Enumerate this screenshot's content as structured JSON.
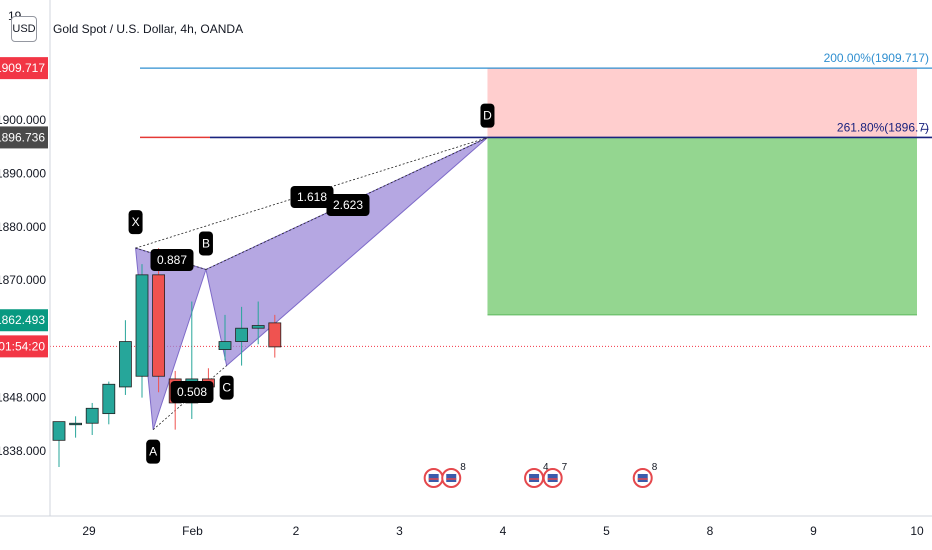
{
  "header": {
    "currency_label": "USD",
    "title": "Gold Spot / U.S. Dollar, 4h, OANDA",
    "top_tick_partial": "19"
  },
  "price_badges": [
    {
      "label": "1909.717",
      "value": 1909.717,
      "color": "#f23645"
    },
    {
      "label": "1896.736",
      "value": 1896.736,
      "color": "#4a4a4a"
    },
    {
      "label": "1862.493",
      "value": 1862.493,
      "color": "#089981"
    },
    {
      "label": "01:54:20",
      "value": 1857.6,
      "color": "#f23645"
    }
  ],
  "fib_labels": [
    {
      "text": "200.00%(1909.717)",
      "value": 1909.717,
      "color": "#2f8fd0"
    },
    {
      "text": "261.80%(1896.7̶̶)",
      "value": 1896.736,
      "color": "#1a237e"
    }
  ],
  "pattern_points": [
    {
      "label": "X",
      "x": 0.45,
      "y": 1876.0
    },
    {
      "label": "A",
      "x": 0.62,
      "y": 1842.0
    },
    {
      "label": "B",
      "x": 1.13,
      "y": 1872.0
    },
    {
      "label": "C",
      "x": 1.33,
      "y": 1854.0
    },
    {
      "label": "D",
      "x": 3.85,
      "y": 1896.7
    }
  ],
  "ratio_labels": [
    "0.887",
    "0.508",
    "1.618",
    "2.623"
  ],
  "event_markers": [
    {
      "x": 3.33,
      "count": "",
      "flags": 1
    },
    {
      "x": 3.5,
      "count": "8",
      "flags": 1
    },
    {
      "x": 4.3,
      "count": "4",
      "flags": 1
    },
    {
      "x": 4.48,
      "count": "7",
      "flags": 1
    },
    {
      "x": 5.35,
      "count": "8",
      "flags": 1
    }
  ],
  "chart_data": {
    "type": "candlestick",
    "symbol": "Gold Spot / U.S. Dollar",
    "interval": "4h",
    "source": "OANDA",
    "x_ticks": [
      "29",
      "Feb",
      "2",
      "3",
      "4",
      "5",
      "8",
      "9",
      "10"
    ],
    "y_ticks": [
      1838.0,
      1848.0,
      1870.0,
      1880.0,
      1890.0,
      1900.0
    ],
    "y_tick_labels": [
      "1838.000",
      "1848.000",
      "1870.000",
      "1880.000",
      "1890.000",
      "1900.000"
    ],
    "ylim": [
      1830.0,
      1916.0
    ],
    "candles": [
      {
        "o": 1840.0,
        "h": 1843.0,
        "l": 1835.0,
        "c": 1843.5
      },
      {
        "o": 1843.0,
        "h": 1844.5,
        "l": 1840.5,
        "c": 1843.2
      },
      {
        "o": 1843.2,
        "h": 1847.0,
        "l": 1841.0,
        "c": 1846.0
      },
      {
        "o": 1845.0,
        "h": 1851.0,
        "l": 1843.0,
        "c": 1850.5
      },
      {
        "o": 1850.0,
        "h": 1862.5,
        "l": 1848.5,
        "c": 1858.5
      },
      {
        "o": 1852.0,
        "h": 1873.0,
        "l": 1848.0,
        "c": 1871.0
      },
      {
        "o": 1871.0,
        "h": 1876.0,
        "l": 1849.0,
        "c": 1852.0
      },
      {
        "o": 1851.5,
        "h": 1853.0,
        "l": 1842.0,
        "c": 1847.0
      },
      {
        "o": 1847.0,
        "h": 1866.0,
        "l": 1844.0,
        "c": 1851.5
      },
      {
        "o": 1851.5,
        "h": 1853.5,
        "l": 1848.0,
        "c": 1850.0
      },
      {
        "o": 1857.0,
        "h": 1863.5,
        "l": 1855.0,
        "c": 1858.5
      },
      {
        "o": 1858.5,
        "h": 1865.0,
        "l": 1854.0,
        "c": 1861.0
      },
      {
        "o": 1861.0,
        "h": 1866.0,
        "l": 1858.0,
        "c": 1861.5
      },
      {
        "o": 1862.0,
        "h": 1863.5,
        "l": 1855.5,
        "c": 1857.5
      }
    ],
    "harmonic_pattern": {
      "points": [
        "X",
        "A",
        "B",
        "C",
        "D"
      ],
      "ratios": [
        "0.887",
        "0.508",
        "1.618",
        "2.623"
      ]
    },
    "position": {
      "entry": 1896.736,
      "target_upper": 1909.717,
      "stop_lower": 1863.5,
      "x_start": 3.85,
      "x_end": 8.0
    },
    "fib_levels": [
      {
        "label": "200.00%",
        "value": 1909.717
      },
      {
        "label": "261.80%",
        "value": 1896.736
      }
    ],
    "current_price_line": 1857.6,
    "grid": false
  }
}
